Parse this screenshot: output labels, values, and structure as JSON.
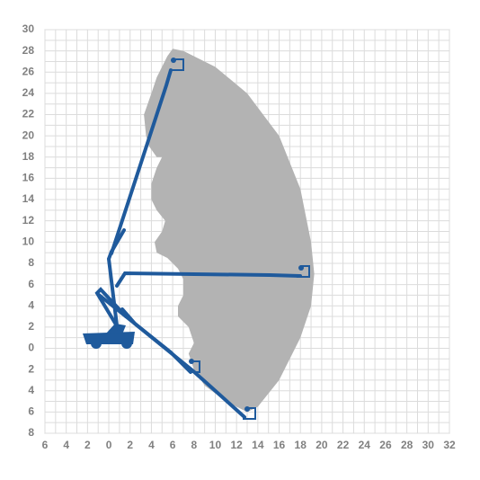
{
  "chart_data": {
    "type": "envelope",
    "color": "#b3b3b3",
    "grid": true,
    "xlim": [
      -6,
      32
    ],
    "ylim": [
      -8,
      30
    ],
    "xticks": [
      {
        "value": -6,
        "label": "6"
      },
      {
        "value": -4,
        "label": "4"
      },
      {
        "value": -2,
        "label": "2"
      },
      0,
      2,
      4,
      6,
      8,
      10,
      12,
      14,
      16,
      18,
      20,
      22,
      24,
      26,
      28,
      30,
      32
    ],
    "yticks": [
      30,
      28,
      26,
      24,
      22,
      20,
      18,
      16,
      14,
      12,
      10,
      8,
      6,
      4,
      2,
      0,
      {
        "value": -2,
        "label": "2"
      },
      {
        "value": -4,
        "label": "4"
      },
      {
        "value": -6,
        "label": "6"
      },
      {
        "value": -8,
        "label": "8"
      }
    ],
    "x": [
      5.5,
      6,
      7,
      10,
      13,
      16,
      18,
      19,
      19.3,
      19,
      18,
      16,
      14,
      13,
      11,
      9,
      8,
      7.5,
      8,
      7.5,
      6.5,
      6.5,
      7,
      7,
      6.5,
      5.5,
      4.5,
      4.3,
      5,
      5.3,
      4.5,
      4,
      4,
      4.5,
      5,
      4.5,
      3.8,
      3.5,
      3.3,
      4,
      4.5
    ],
    "values": [
      27.5,
      28.2,
      28,
      26.5,
      24,
      20,
      15,
      10,
      7,
      4,
      1,
      -3,
      -5.5,
      -6,
      -5,
      -3.5,
      -2,
      -0.5,
      0.5,
      2,
      3,
      4,
      5,
      6.5,
      7.5,
      8.5,
      9,
      10,
      11,
      12,
      13,
      14,
      15.5,
      17,
      18,
      18,
      19,
      20,
      22,
      24,
      25.5
    ]
  }
}
